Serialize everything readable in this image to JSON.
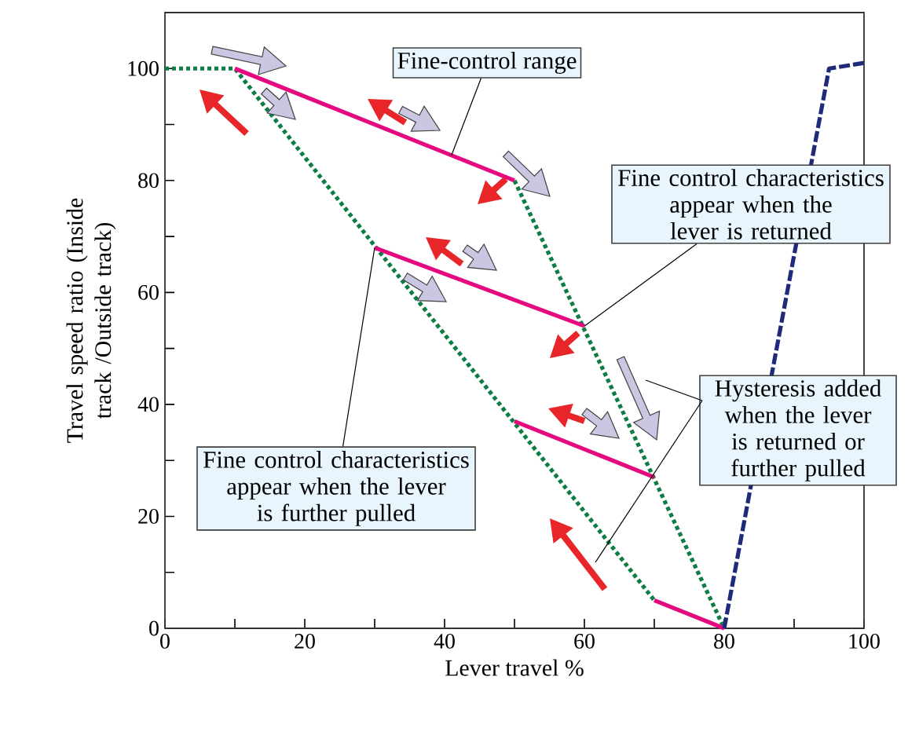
{
  "chart_data": {
    "type": "line",
    "xlabel": "Lever travel %",
    "ylabel": "Travel speed ratio (Inside track /Outside track)",
    "xlim": [
      0,
      100
    ],
    "ylim": [
      0,
      110
    ],
    "xticks": [
      0,
      {
        "value": 10,
        "label": null
      },
      20,
      {
        "value": 30,
        "label": null
      },
      40,
      {
        "value": 50,
        "label": null
      },
      60,
      {
        "value": 70,
        "label": null
      },
      80,
      {
        "value": 90,
        "label": null
      },
      100
    ],
    "yticks": [
      0,
      {
        "value": 10,
        "label": null
      },
      20,
      {
        "value": 30,
        "label": null
      },
      40,
      {
        "value": 50,
        "label": null
      },
      60,
      {
        "value": 70,
        "label": null
      },
      80,
      {
        "value": 90,
        "label": null
      },
      100
    ],
    "marker": "none",
    "series": [
      {
        "color": "#0b7d45",
        "line_style": "dotted",
        "x": [
          0,
          10,
          70
        ],
        "values": [
          100,
          100,
          5
        ]
      },
      {
        "color": "#0b7d45",
        "line_style": "dotted",
        "x": [
          50,
          80
        ],
        "values": [
          80,
          0
        ]
      },
      {
        "color": "#e5097f",
        "line_style": "solid",
        "x": [
          10,
          50
        ],
        "values": [
          100,
          80
        ]
      },
      {
        "color": "#e5097f",
        "line_style": "solid",
        "x": [
          30,
          60
        ],
        "values": [
          68,
          54
        ]
      },
      {
        "color": "#e5097f",
        "line_style": "solid",
        "x": [
          50,
          70
        ],
        "values": [
          37,
          27
        ]
      },
      {
        "color": "#e5097f",
        "line_style": "solid",
        "x": [
          70,
          80
        ],
        "values": [
          5,
          0
        ]
      },
      {
        "color": "#1f2a7a",
        "line_style": "dashed",
        "x": [
          80,
          95,
          100
        ],
        "values": [
          0,
          100,
          101
        ]
      }
    ],
    "annotations": [
      {
        "text": "Fine-control range",
        "x": 41,
        "y": 84.5
      },
      {
        "text": "Fine control characteristics appear when the lever is returned",
        "x": 60,
        "y": 54
      },
      "Hysteresis added when the lever is returned or further pulled",
      {
        "text": "Fine control characteristics appear when the lever is further pulled",
        "x": 30,
        "y": 68
      }
    ]
  }
}
